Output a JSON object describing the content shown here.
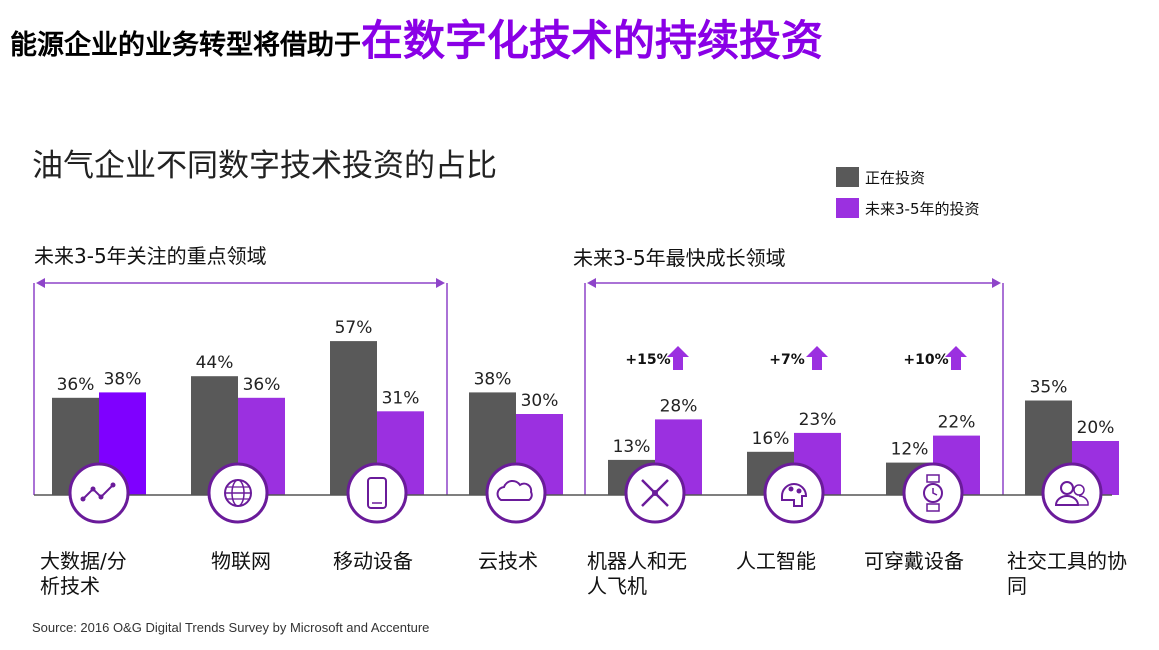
{
  "headline": {
    "prefix": "能源企业的业务转型将借助于",
    "highlight": "在数字化技术的持续投资"
  },
  "subtitle": "油气企业不同数字技术投资的占比",
  "legend": [
    {
      "label": "正在投资",
      "color": "#595959"
    },
    {
      "label": "未来3-5年的投资",
      "color": "#9b30e0"
    }
  ],
  "sections": {
    "focus_label": "未来3-5年关注的重点领域",
    "growth_label": "未来3-5年最快成长领域"
  },
  "source": "Source: 2016 O&G Digital Trends Survey by Microsoft and Accenture",
  "chart_data": {
    "type": "bar",
    "categories": [
      [
        "大数据/分",
        "析技术"
      ],
      [
        "物联网"
      ],
      [
        "移动设备"
      ],
      [
        "云技术"
      ],
      [
        "机器人和无",
        "人飞机"
      ],
      [
        "人工智能"
      ],
      [
        "可穿戴设备"
      ],
      [
        "社交工具的协",
        "同"
      ]
    ],
    "icons": [
      "analytics-icon",
      "globe-icon",
      "mobile-phone-icon",
      "cloud-icon",
      "robot-drone-icon",
      "ai-brain-icon",
      "smartwatch-icon",
      "people-icon"
    ],
    "series": [
      {
        "name": "正在投资",
        "values": [
          36,
          44,
          57,
          38,
          13,
          16,
          12,
          35
        ],
        "labels": [
          "36%",
          "44%",
          "57%",
          "38%",
          "13%",
          "16%",
          "12%",
          "35%"
        ],
        "color": "#595959"
      },
      {
        "name": "未来3-5年的投资",
        "values": [
          38,
          36,
          31,
          30,
          28,
          23,
          22,
          20
        ],
        "labels": [
          "38%",
          "36%",
          "31%",
          "30%",
          "28%",
          "23%",
          "22%",
          "20%"
        ],
        "color": "#9b30e0"
      }
    ],
    "highlight_future_color": "#7f00ff",
    "growth": [
      "",
      "",
      "",
      "",
      "+15%",
      "+7%",
      "+10%",
      ""
    ],
    "growth_arrow_color": "#9b30e0",
    "ylim": [
      0,
      60
    ]
  }
}
